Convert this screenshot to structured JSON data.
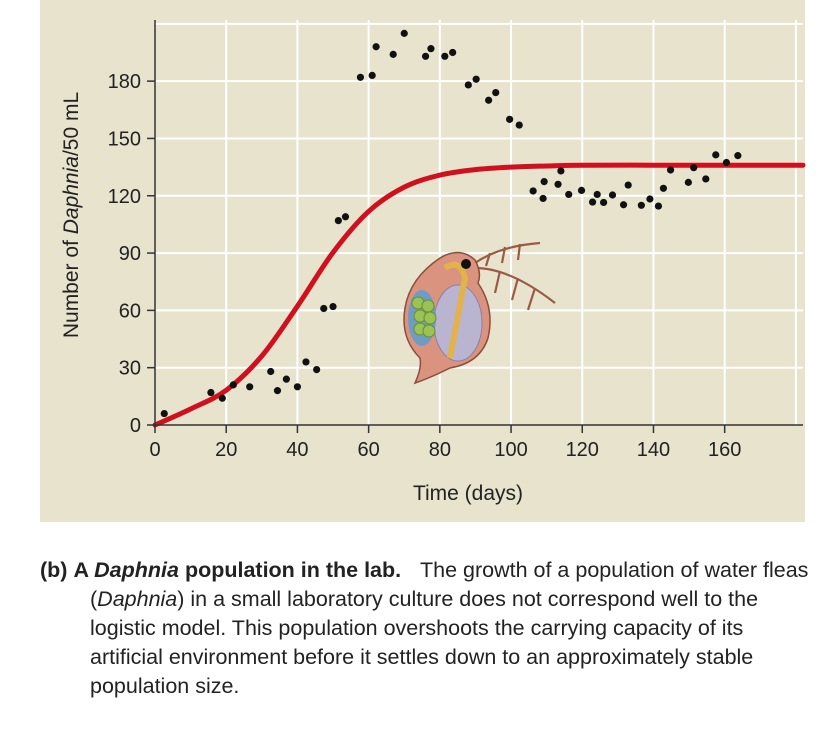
{
  "chart_data": {
    "type": "scatter",
    "xlabel": "Time (days)",
    "ylabel_parts": [
      "Number of ",
      "Daphnia",
      "/50 mL"
    ],
    "xlim": [
      0,
      182
    ],
    "ylim": [
      0,
      212
    ],
    "xticks": [
      0,
      20,
      40,
      60,
      80,
      100,
      120,
      140,
      160
    ],
    "yticks": [
      0,
      30,
      60,
      90,
      120,
      150,
      180
    ],
    "grid": true,
    "colors": {
      "points": "#111111",
      "curve": "#d0101f",
      "background": "#e7e3cd",
      "grid": "#ffffff"
    },
    "points": [
      [
        2.6,
        6
      ],
      [
        15.7,
        17
      ],
      [
        18.9,
        14
      ],
      [
        22,
        21
      ],
      [
        26.6,
        20
      ],
      [
        32.5,
        28
      ],
      [
        34.4,
        18
      ],
      [
        36.9,
        24
      ],
      [
        40,
        20
      ],
      [
        42.4,
        33
      ],
      [
        45.4,
        29
      ],
      [
        47.4,
        61
      ],
      [
        50,
        62
      ],
      [
        51.5,
        107
      ],
      [
        53.5,
        109
      ],
      [
        57.7,
        182
      ],
      [
        61,
        183
      ],
      [
        62.1,
        198
      ],
      [
        66.9,
        194
      ],
      [
        70,
        205
      ],
      [
        76,
        193
      ],
      [
        77.5,
        197
      ],
      [
        81.4,
        193
      ],
      [
        83.6,
        195
      ],
      [
        88,
        178
      ],
      [
        90.2,
        181
      ],
      [
        93.7,
        170
      ],
      [
        95.7,
        174
      ],
      [
        99.6,
        160
      ],
      [
        102.3,
        157
      ],
      [
        106.2,
        122.5
      ],
      [
        109,
        118.6
      ],
      [
        109.3,
        127.4
      ],
      [
        113.2,
        126
      ],
      [
        114,
        133
      ],
      [
        116.2,
        120.7
      ],
      [
        119.8,
        122.8
      ],
      [
        122.9,
        116.7
      ],
      [
        124.2,
        120.7
      ],
      [
        126,
        116.5
      ],
      [
        128.5,
        120.4
      ],
      [
        131.6,
        115.3
      ],
      [
        132.9,
        125.6
      ],
      [
        136.6,
        115
      ],
      [
        139,
        118.3
      ],
      [
        141.4,
        114.6
      ],
      [
        142.8,
        123.9
      ],
      [
        144.8,
        133.5
      ],
      [
        149.8,
        127
      ],
      [
        151.3,
        134.7
      ],
      [
        154.7,
        128.8
      ],
      [
        157.5,
        141.4
      ],
      [
        160.5,
        137.4
      ],
      [
        163.7,
        141
      ]
    ],
    "curve": [
      [
        0,
        0
      ],
      [
        10,
        8.4
      ],
      [
        20,
        18.2
      ],
      [
        30,
        36.1
      ],
      [
        40,
        62.2
      ],
      [
        50,
        90.3
      ],
      [
        60,
        111.8
      ],
      [
        70,
        124.5
      ],
      [
        80,
        130.8
      ],
      [
        90,
        133.7
      ],
      [
        100,
        135
      ],
      [
        110,
        135.6
      ],
      [
        120,
        136
      ],
      [
        140,
        136
      ],
      [
        160,
        136
      ],
      [
        182,
        136
      ]
    ],
    "illustration": "daphnia-drawing"
  },
  "caption": {
    "label": "(b)",
    "bold_pre": "A ",
    "bold_italic": "Daphnia",
    "bold_post": " population in the lab.",
    "text_1": " The growth of a population of water fleas (",
    "text_italic": "Daphnia",
    "text_2": ") in a small laboratory culture does not correspond well to the logistic model. This population overshoots the carrying capacity of its artificial environment before it settles down to an approximately stable population size."
  }
}
